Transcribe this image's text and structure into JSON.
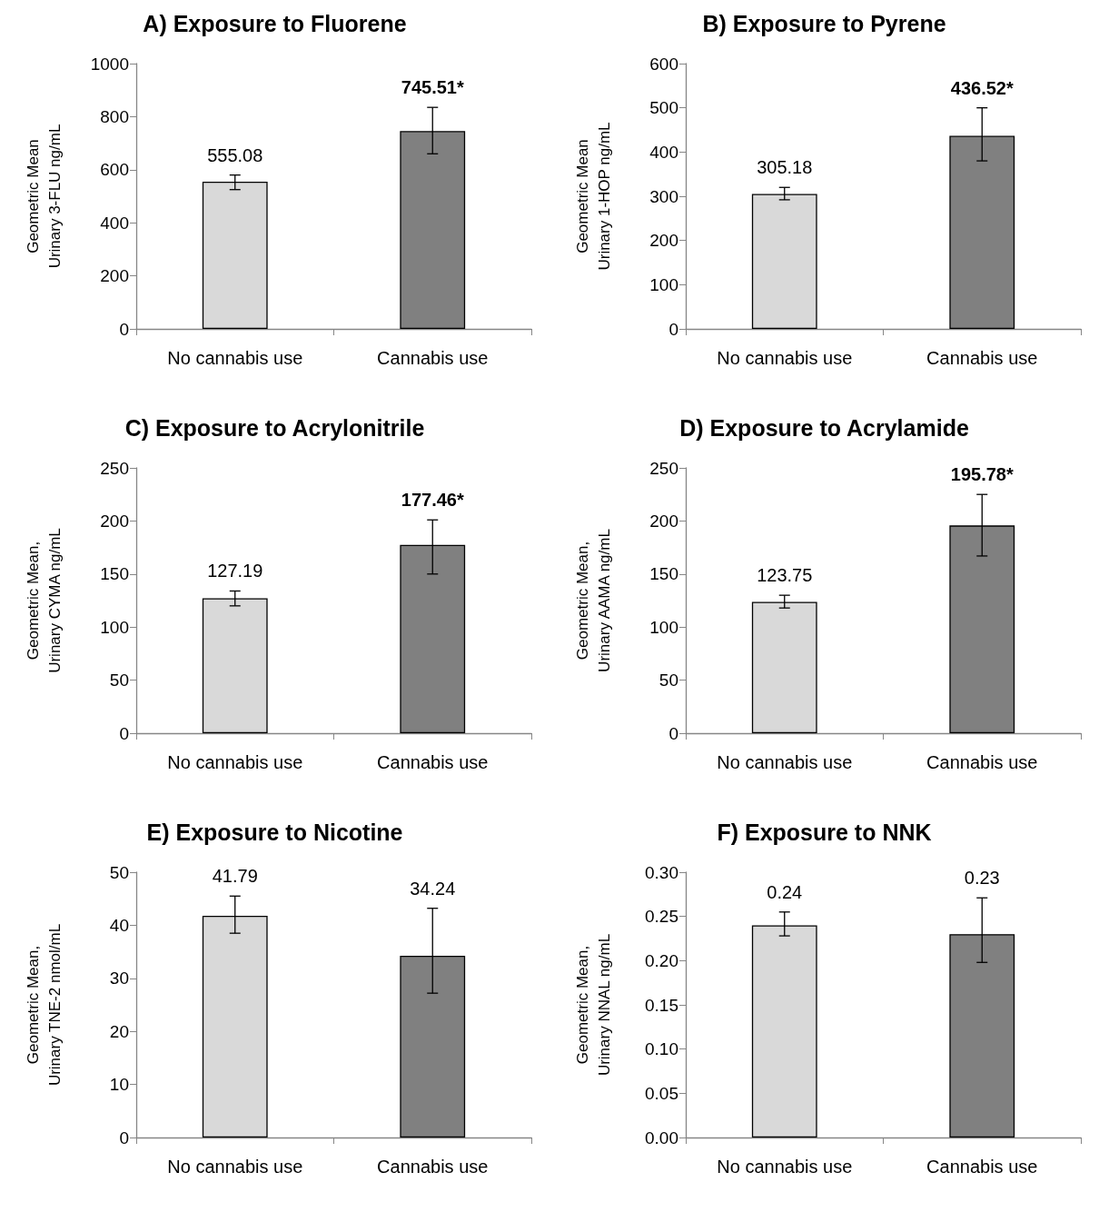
{
  "chart_data": [
    {
      "type": "bar",
      "title": "A) Exposure to Fluorene",
      "ylabel": "Geometric Mean\nUrinary 3-FLU ng/mL",
      "categories": [
        "No cannabis use",
        "Cannabis use"
      ],
      "values": [
        555.08,
        745.51
      ],
      "colors": [
        "#d9d9d9",
        "#808080"
      ],
      "errors": [
        [
          525,
          580
        ],
        [
          660,
          835
        ]
      ],
      "value_labels": [
        "555.08",
        "745.51*"
      ],
      "ylim": [
        0,
        1000
      ],
      "yticks": [
        0,
        200,
        400,
        600,
        800,
        1000
      ]
    },
    {
      "type": "bar",
      "title": "B) Exposure to Pyrene",
      "ylabel": "Geometric Mean\nUrinary 1-HOP ng/mL",
      "categories": [
        "No cannabis use",
        "Cannabis use"
      ],
      "values": [
        305.18,
        436.52
      ],
      "colors": [
        "#d9d9d9",
        "#808080"
      ],
      "errors": [
        [
          292,
          320
        ],
        [
          380,
          500
        ]
      ],
      "value_labels": [
        "305.18",
        "436.52*"
      ],
      "ylim": [
        0,
        600
      ],
      "yticks": [
        0,
        100,
        200,
        300,
        400,
        500,
        600
      ]
    },
    {
      "type": "bar",
      "title": "C) Exposure to Acrylonitrile",
      "ylabel": "Geometric Mean,\nUrinary CYMA ng/mL",
      "categories": [
        "No cannabis use",
        "Cannabis use"
      ],
      "values": [
        127.19,
        177.46
      ],
      "colors": [
        "#d9d9d9",
        "#808080"
      ],
      "errors": [
        [
          120,
          134
        ],
        [
          150,
          201
        ]
      ],
      "value_labels": [
        "127.19",
        "177.46*"
      ],
      "ylim": [
        0,
        250
      ],
      "yticks": [
        0,
        50,
        100,
        150,
        200,
        250
      ]
    },
    {
      "type": "bar",
      "title": "D) Exposure to Acrylamide",
      "ylabel": "Geometric Mean,\nUrinary AAMA ng/mL",
      "categories": [
        "No cannabis use",
        "Cannabis use"
      ],
      "values": [
        123.75,
        195.78
      ],
      "colors": [
        "#d9d9d9",
        "#808080"
      ],
      "errors": [
        [
          118,
          130
        ],
        [
          167,
          225
        ]
      ],
      "value_labels": [
        "123.75",
        "195.78*"
      ],
      "ylim": [
        0,
        250
      ],
      "yticks": [
        0,
        50,
        100,
        150,
        200,
        250
      ]
    },
    {
      "type": "bar",
      "title": "E) Exposure to Nicotine",
      "ylabel": "Geometric Mean,\nUrinary TNE-2 nmol/mL",
      "categories": [
        "No cannabis use",
        "Cannabis use"
      ],
      "values": [
        41.79,
        34.24
      ],
      "colors": [
        "#d9d9d9",
        "#808080"
      ],
      "errors": [
        [
          38.5,
          45.5
        ],
        [
          27.2,
          43.2
        ]
      ],
      "data_labels": true,
      "ylim": [
        0,
        50
      ],
      "yticks": [
        0,
        10,
        20,
        30,
        40,
        50
      ]
    },
    {
      "type": "bar",
      "title": "F) Exposure to NNK",
      "ylabel": "Geometric Mean,\nUrinary NNAL ng/mL",
      "categories": [
        "No cannabis use",
        "Cannabis use"
      ],
      "values": [
        0.24,
        0.23
      ],
      "colors": [
        "#d9d9d9",
        "#808080"
      ],
      "errors": [
        [
          0.228,
          0.255
        ],
        [
          0.198,
          0.271
        ]
      ],
      "data_labels": true,
      "ylim": [
        0,
        0.3
      ],
      "yticks": [
        {
          "value": 0,
          "label": "0.00"
        },
        {
          "value": 0.05,
          "label": "0.05"
        },
        {
          "value": 0.1,
          "label": "0.10"
        },
        {
          "value": 0.15,
          "label": "0.15"
        },
        {
          "value": 0.2,
          "label": "0.20"
        },
        {
          "value": 0.25,
          "label": "0.25"
        },
        {
          "value": 0.3,
          "label": "0.30"
        }
      ]
    }
  ]
}
